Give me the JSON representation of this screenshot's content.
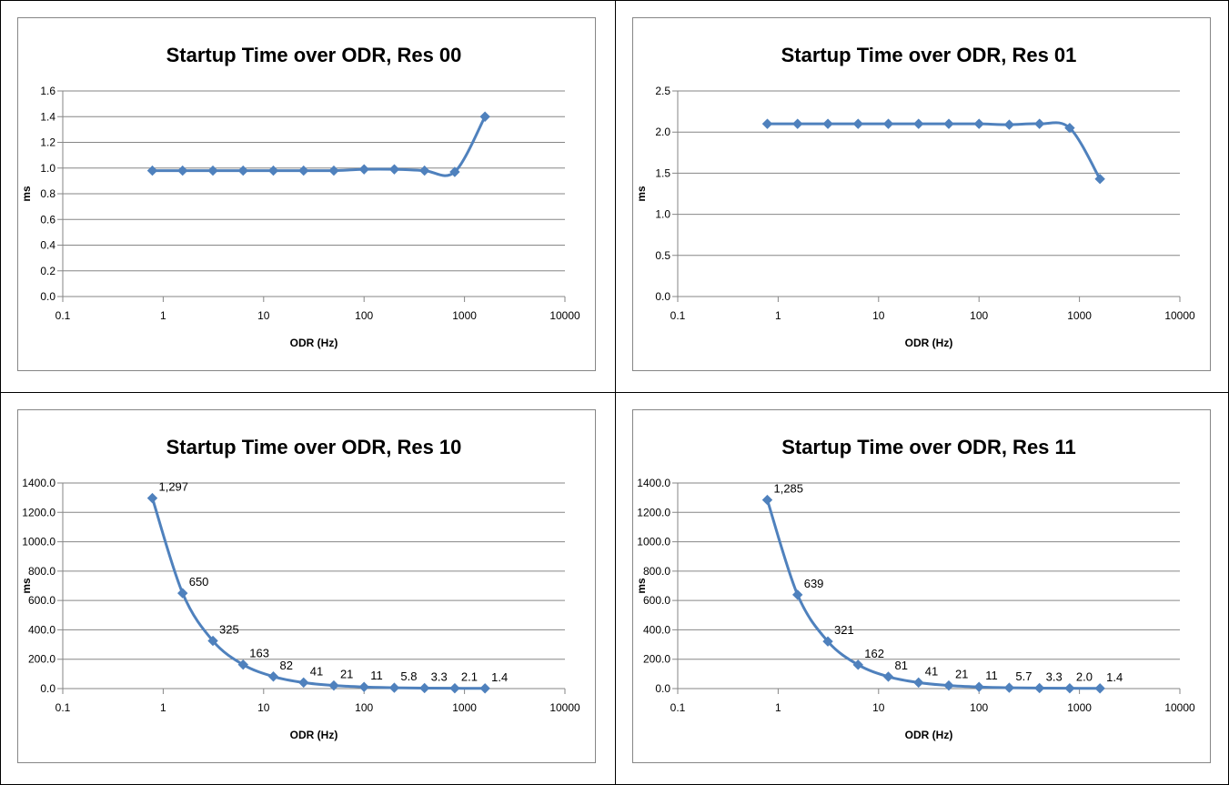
{
  "chart_data": [
    {
      "type": "scatter",
      "title": "Startup Time over ODR, Res 00",
      "xlabel": "ODR (Hz)",
      "ylabel": "ms",
      "x_scale": "log",
      "xlim": [
        0.1,
        10000
      ],
      "ylim": [
        0,
        1.6
      ],
      "ytick_decimals": 1,
      "y_ticks": [
        0,
        0.2,
        0.4,
        0.6,
        0.8,
        1.0,
        1.2,
        1.4,
        1.6
      ],
      "x_ticks": [
        0.1,
        1,
        10,
        100,
        1000,
        10000
      ],
      "x_tick_labels": [
        "0.1",
        "1",
        "10",
        "100",
        "1000",
        "10000"
      ],
      "grid": true,
      "smooth": true,
      "series": [
        {
          "x": [
            0.78,
            1.56,
            3.125,
            6.25,
            12.5,
            25,
            50,
            100,
            200,
            400,
            800,
            1600
          ],
          "y": [
            0.98,
            0.98,
            0.98,
            0.98,
            0.98,
            0.98,
            0.98,
            0.99,
            0.99,
            0.98,
            0.97,
            1.4
          ],
          "data_labels": []
        }
      ]
    },
    {
      "type": "scatter",
      "title": "Startup Time over ODR, Res 01",
      "xlabel": "ODR (Hz)",
      "ylabel": "ms",
      "x_scale": "log",
      "xlim": [
        0.1,
        10000
      ],
      "ylim": [
        0,
        2.5
      ],
      "ytick_decimals": 1,
      "y_ticks": [
        0,
        0.5,
        1.0,
        1.5,
        2.0,
        2.5
      ],
      "x_ticks": [
        0.1,
        1,
        10,
        100,
        1000,
        10000
      ],
      "x_tick_labels": [
        "0.1",
        "1",
        "10",
        "100",
        "1000",
        "10000"
      ],
      "grid": true,
      "smooth": true,
      "series": [
        {
          "x": [
            0.78,
            1.56,
            3.125,
            6.25,
            12.5,
            25,
            50,
            100,
            200,
            400,
            800,
            1600
          ],
          "y": [
            2.1,
            2.1,
            2.1,
            2.1,
            2.1,
            2.1,
            2.1,
            2.1,
            2.09,
            2.1,
            2.05,
            1.43
          ],
          "data_labels": []
        }
      ]
    },
    {
      "type": "scatter",
      "title": "Startup Time over ODR, Res 10",
      "xlabel": "ODR (Hz)",
      "ylabel": "ms",
      "x_scale": "log",
      "xlim": [
        0.1,
        10000
      ],
      "ylim": [
        0,
        1400
      ],
      "ytick_decimals": 1,
      "y_ticks": [
        0,
        200,
        400,
        600,
        800,
        1000,
        1200,
        1400
      ],
      "x_ticks": [
        0.1,
        1,
        10,
        100,
        1000,
        10000
      ],
      "x_tick_labels": [
        "0.1",
        "1",
        "10",
        "100",
        "1000",
        "10000"
      ],
      "grid": true,
      "smooth": true,
      "series": [
        {
          "x": [
            0.78,
            1.56,
            3.125,
            6.25,
            12.5,
            25,
            50,
            100,
            200,
            400,
            800,
            1600
          ],
          "y": [
            1297,
            650,
            325,
            163,
            82,
            41,
            21,
            11,
            5.8,
            3.3,
            2.1,
            1.4
          ],
          "data_labels": [
            "1,297",
            "650",
            "325",
            "163",
            "82",
            "41",
            "21",
            "11",
            "5.8",
            "3.3",
            "2.1",
            "1.4"
          ]
        }
      ]
    },
    {
      "type": "scatter",
      "title": "Startup Time over ODR, Res 11",
      "xlabel": "ODR (Hz)",
      "ylabel": "ms",
      "x_scale": "log",
      "xlim": [
        0.1,
        10000
      ],
      "ylim": [
        0,
        1400
      ],
      "ytick_decimals": 1,
      "y_ticks": [
        0,
        200,
        400,
        600,
        800,
        1000,
        1200,
        1400
      ],
      "x_ticks": [
        0.1,
        1,
        10,
        100,
        1000,
        10000
      ],
      "x_tick_labels": [
        "0.1",
        "1",
        "10",
        "100",
        "1000",
        "10000"
      ],
      "grid": true,
      "smooth": true,
      "series": [
        {
          "x": [
            0.78,
            1.56,
            3.125,
            6.25,
            12.5,
            25,
            50,
            100,
            200,
            400,
            800,
            1600
          ],
          "y": [
            1285,
            639,
            321,
            162,
            81,
            41,
            21,
            11,
            5.7,
            3.3,
            2.0,
            1.4
          ],
          "data_labels": [
            "1,285",
            "639",
            "321",
            "162",
            "81",
            "41",
            "21",
            "11",
            "5.7",
            "3.3",
            "2.0",
            "1.4"
          ]
        }
      ]
    }
  ],
  "colors": {
    "series": "#4F81BD",
    "grid": "#868686",
    "border": "#000000"
  }
}
